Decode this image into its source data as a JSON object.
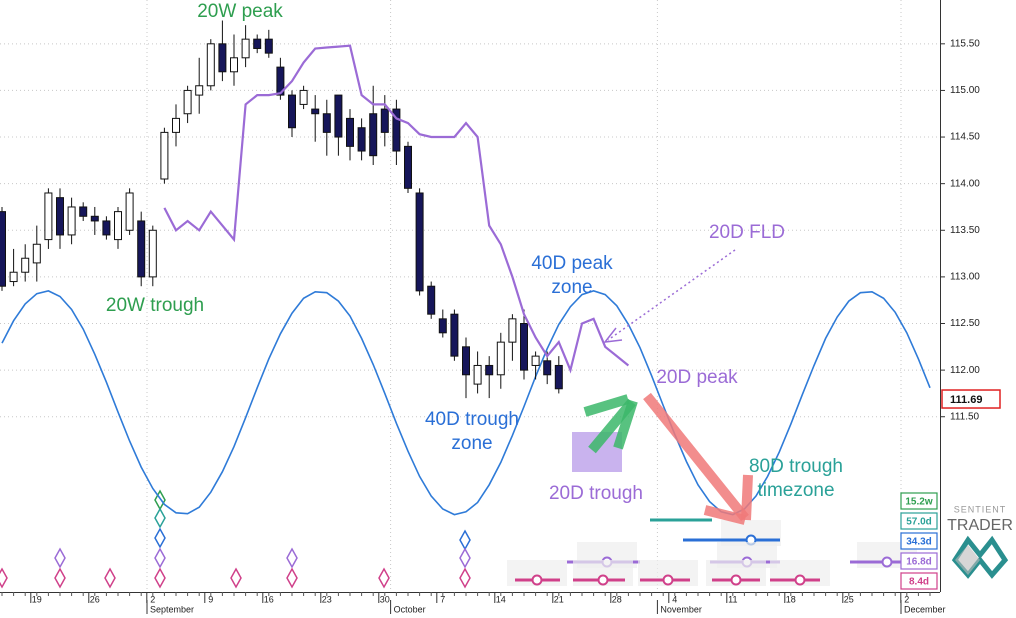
{
  "chart_data": {
    "type": "candlestick",
    "categories": [
      null,
      null,
      null,
      "19",
      null,
      null,
      null,
      null,
      "26",
      null,
      null,
      null,
      null,
      "2",
      null,
      null,
      null,
      null,
      "9",
      null,
      null,
      null,
      null,
      "16",
      null,
      null,
      null,
      null,
      "23",
      null,
      null,
      null,
      null,
      "30",
      null,
      null,
      null,
      null,
      "7",
      null,
      null,
      null,
      null,
      "14",
      null,
      null,
      null,
      null,
      "21",
      null,
      null,
      null,
      null,
      "28",
      null,
      null,
      null,
      null,
      "4",
      null,
      null,
      null,
      null,
      "11",
      null,
      null,
      null,
      null,
      "18",
      null,
      null,
      null,
      null,
      "25",
      null,
      null,
      null,
      null,
      "2",
      null,
      null
    ],
    "month_categories": [
      null,
      null,
      null,
      null,
      null,
      null,
      null,
      null,
      null,
      null,
      null,
      null,
      null,
      "September",
      null,
      null,
      null,
      null,
      null,
      null,
      null,
      null,
      null,
      null,
      null,
      null,
      null,
      null,
      null,
      null,
      null,
      null,
      null,
      null,
      "October",
      null,
      null,
      null,
      null,
      null,
      null,
      null,
      null,
      null,
      null,
      null,
      null,
      null,
      null,
      null,
      null,
      null,
      null,
      null,
      null,
      null,
      null,
      "November",
      null,
      null,
      null,
      null,
      null,
      null,
      null,
      null,
      null,
      null,
      null,
      null,
      null,
      null,
      null,
      null,
      null,
      null,
      null,
      null,
      "December",
      null,
      null
    ],
    "open": [
      113.7,
      112.95,
      113.05,
      113.15,
      113.4,
      113.85,
      113.45,
      113.75,
      113.65,
      113.6,
      113.4,
      113.5,
      113.6,
      113.0,
      114.05,
      114.55,
      114.75,
      114.95,
      115.05,
      115.5,
      115.2,
      115.35,
      115.55,
      115.55,
      115.25,
      114.95,
      114.85,
      114.8,
      114.75,
      114.95,
      114.7,
      114.6,
      114.75,
      114.8,
      114.8,
      114.4,
      113.9,
      112.9,
      112.55,
      112.6,
      112.25,
      111.85,
      112.05,
      111.95,
      112.3,
      112.5,
      112.05,
      112.1,
      112.05,
      null,
      null,
      null,
      null,
      null,
      null,
      null,
      null,
      null,
      null,
      null,
      null,
      null,
      null,
      null,
      null,
      null,
      null,
      null,
      null,
      null,
      null,
      null,
      null,
      null,
      null,
      null,
      null,
      null,
      null,
      null,
      null
    ],
    "high": [
      113.75,
      113.3,
      113.35,
      113.55,
      113.95,
      113.95,
      113.85,
      113.8,
      113.75,
      113.65,
      113.75,
      113.95,
      113.7,
      113.55,
      114.6,
      114.85,
      115.05,
      115.35,
      115.55,
      115.75,
      115.6,
      115.7,
      115.6,
      115.65,
      115.35,
      115.0,
      115.05,
      114.95,
      114.9,
      114.95,
      114.8,
      114.7,
      115.05,
      114.95,
      114.9,
      114.45,
      113.95,
      112.95,
      112.65,
      112.65,
      112.35,
      112.2,
      112.15,
      112.4,
      112.6,
      112.65,
      112.2,
      112.2,
      112.15,
      null,
      null,
      null,
      null,
      null,
      null,
      null,
      null,
      null,
      null,
      null,
      null,
      null,
      null,
      null,
      null,
      null,
      null,
      null,
      null,
      null,
      null,
      null,
      null,
      null,
      null,
      null,
      null,
      null,
      null,
      null,
      null
    ],
    "low": [
      112.85,
      112.9,
      112.95,
      112.95,
      113.3,
      113.3,
      113.35,
      113.6,
      113.45,
      113.4,
      113.3,
      113.45,
      112.9,
      112.9,
      114.0,
      114.4,
      114.65,
      114.75,
      115.0,
      115.1,
      115.05,
      115.25,
      115.4,
      115.35,
      114.9,
      114.5,
      114.8,
      114.45,
      114.3,
      114.3,
      114.25,
      114.25,
      114.2,
      114.4,
      114.2,
      113.9,
      112.8,
      112.55,
      112.35,
      112.1,
      111.7,
      111.75,
      111.7,
      111.8,
      112.1,
      111.9,
      111.9,
      111.85,
      111.75,
      null,
      null,
      null,
      null,
      null,
      null,
      null,
      null,
      null,
      null,
      null,
      null,
      null,
      null,
      null,
      null,
      null,
      null,
      null,
      null,
      null,
      null,
      null,
      null,
      null,
      null,
      null,
      null,
      null,
      null,
      null,
      null
    ],
    "close": [
      112.9,
      113.05,
      113.2,
      113.35,
      113.9,
      113.45,
      113.75,
      113.65,
      113.6,
      113.45,
      113.7,
      113.9,
      113.0,
      113.5,
      114.55,
      114.7,
      115.0,
      115.05,
      115.5,
      115.2,
      115.35,
      115.55,
      115.45,
      115.4,
      114.95,
      114.6,
      115.0,
      114.75,
      114.55,
      114.5,
      114.4,
      114.35,
      114.3,
      114.55,
      114.35,
      113.95,
      112.85,
      112.6,
      112.4,
      112.15,
      111.95,
      112.05,
      111.95,
      112.3,
      112.55,
      112.0,
      112.15,
      111.95,
      111.8,
      null,
      null,
      null,
      null,
      null,
      null,
      null,
      null,
      null,
      null,
      null,
      null,
      null,
      null,
      null,
      null,
      null,
      null,
      null,
      null,
      null,
      null,
      null,
      null,
      null,
      null,
      null,
      null,
      null,
      null,
      null,
      null
    ],
    "up_color": "#ffffff",
    "down_color": "#16165a",
    "fld": {
      "color": "#9b6bd6",
      "values": [
        null,
        null,
        null,
        null,
        null,
        null,
        null,
        null,
        null,
        null,
        null,
        null,
        null,
        null,
        113.74,
        113.5,
        113.6,
        113.5,
        113.7,
        113.55,
        113.4,
        114.85,
        114.95,
        114.95,
        114.97,
        115.1,
        115.3,
        115.45,
        115.46,
        115.47,
        115.48,
        114.95,
        114.85,
        114.85,
        114.7,
        114.65,
        114.53,
        114.5,
        114.5,
        114.5,
        114.65,
        114.5,
        113.55,
        113.35,
        113.0,
        112.6,
        112.35,
        112.15,
        112.3,
        112.0,
        112.5,
        112.55,
        112.25,
        112.15,
        112.05,
        null,
        null,
        null,
        null,
        null,
        null,
        null,
        null,
        null,
        null,
        null,
        null,
        null,
        null,
        null,
        null,
        null,
        null,
        null,
        null,
        null,
        null,
        null,
        null,
        null,
        null
      ]
    },
    "cycle": {
      "color": "#2f7bd8",
      "values": [
        112.29,
        112.53,
        112.71,
        112.82,
        112.85,
        112.79,
        112.65,
        112.44,
        112.17,
        111.87,
        111.55,
        111.24,
        110.96,
        110.73,
        110.56,
        110.47,
        110.46,
        110.53,
        110.69,
        110.91,
        111.18,
        111.49,
        111.81,
        112.12,
        112.39,
        112.61,
        112.77,
        112.84,
        112.83,
        112.74,
        112.58,
        112.34,
        112.06,
        111.75,
        111.43,
        111.13,
        110.86,
        110.65,
        110.51,
        110.45,
        110.48,
        110.58,
        110.77,
        111.01,
        111.3,
        111.61,
        111.93,
        112.23,
        112.49,
        112.68,
        112.81,
        112.85,
        112.81,
        112.69,
        112.49,
        112.24,
        111.94,
        111.62,
        111.31,
        111.02,
        110.77,
        110.59,
        110.48,
        110.45,
        110.51,
        110.65,
        110.86,
        111.12,
        111.42,
        111.74,
        112.05,
        112.34,
        112.57,
        112.74,
        112.83,
        112.84,
        112.77,
        112.62,
        112.4,
        112.12,
        111.81
      ]
    },
    "ylim": [
      109.62,
      115.97
    ],
    "yticks": [
      {
        "value": 111.5,
        "label": "111.50"
      },
      {
        "value": 112,
        "label": "112.00"
      },
      {
        "value": 112.5,
        "label": "112.50"
      },
      {
        "value": 113,
        "label": "113.00"
      },
      {
        "value": 113.5,
        "label": "113.50"
      },
      {
        "value": 114,
        "label": "114.00"
      },
      {
        "value": 114.5,
        "label": "114.50"
      },
      {
        "value": 115,
        "label": "115.00"
      },
      {
        "value": 115.5,
        "label": "115.50"
      }
    ],
    "grid": true,
    "last_price": 111.69,
    "last_price_color": "#e02020",
    "annotations": [
      {
        "lines": [
          "20W peak"
        ],
        "color": "#2e9e4f"
      },
      {
        "lines": [
          "20W trough"
        ],
        "color": "#2e9e4f"
      },
      {
        "lines": [
          "40D peak",
          "zone"
        ],
        "color": "#2a6fd6"
      },
      {
        "lines": [
          "40D trough",
          "zone"
        ],
        "color": "#2a6fd6"
      },
      {
        "lines": [
          "20D FLD"
        ],
        "color": "#9b6bd6"
      },
      {
        "lines": [
          "20D peak"
        ],
        "color": "#9b6bd6"
      },
      {
        "lines": [
          "20D trough"
        ],
        "color": "#9b6bd6"
      },
      {
        "lines": [
          "80D trough",
          "timezone"
        ],
        "color": "#2aa198"
      }
    ],
    "cycle_legend": [
      {
        "label": "15.2w",
        "color": "#2e9e4f"
      },
      {
        "label": "57.0d",
        "color": "#2aa198"
      },
      {
        "label": "34.3d",
        "color": "#2a6fd6"
      },
      {
        "label": "16.8d",
        "color": "#9b6bd6"
      },
      {
        "label": "8.4d",
        "color": "#d0408a"
      }
    ],
    "logo": [
      "SENTIENT",
      "TRADER"
    ]
  }
}
